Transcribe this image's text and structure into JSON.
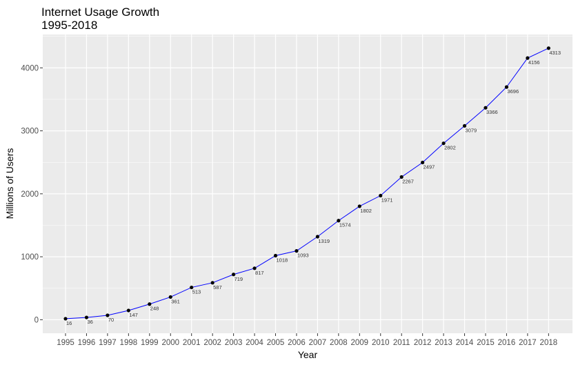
{
  "chart_data": {
    "type": "line",
    "title": "Internet Usage Growth",
    "subtitle": "1995-2018",
    "xlabel": "Year",
    "ylabel": "Millions of Users",
    "x": [
      "1995",
      "1996",
      "1997",
      "1998",
      "1999",
      "2000",
      "2001",
      "2002",
      "2003",
      "2004",
      "2005",
      "2006",
      "2007",
      "2008",
      "2009",
      "2010",
      "2011",
      "2012",
      "2013",
      "2014",
      "2015",
      "2016",
      "2017",
      "2018"
    ],
    "values": [
      16,
      36,
      70,
      147,
      248,
      361,
      513,
      587,
      719,
      817,
      1018,
      1093,
      1319,
      1574,
      1802,
      1971,
      2267,
      2497,
      2802,
      3079,
      3366,
      3696,
      4156,
      4313
    ],
    "labels": [
      "16",
      "36",
      "70",
      "147",
      "248",
      "361",
      "513",
      "587",
      "719",
      "817",
      "1018",
      "1093",
      "1319",
      "1574",
      "1802",
      "1971",
      "2267",
      "2497",
      "2802",
      "3079",
      "3366",
      "3696",
      "4156",
      "4313"
    ],
    "y_ticks": [
      0,
      1000,
      2000,
      3000,
      4000
    ],
    "y_tick_labels": [
      "0",
      "1000",
      "2000",
      "3000",
      "4000"
    ],
    "ylim": [
      -215,
      4530
    ],
    "grid": true,
    "legend": "none",
    "colors": {
      "line": "#0000ff",
      "point": "#000000",
      "panel": "#ebebeb",
      "grid": "#ffffff"
    }
  }
}
